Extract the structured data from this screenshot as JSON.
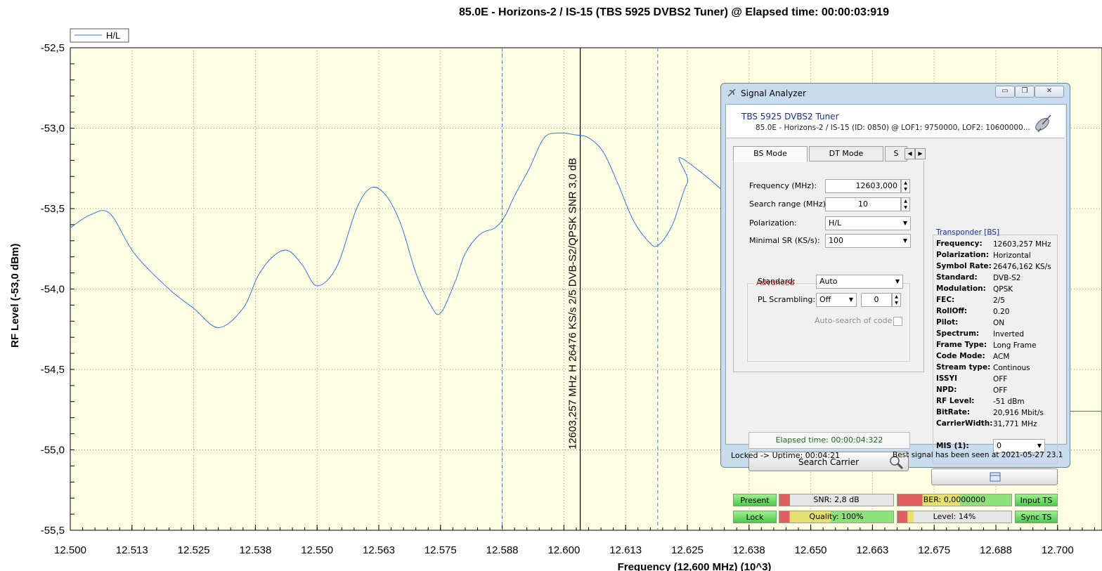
{
  "chart": {
    "title": "85.0E -  Horizons-2 / IS-15    (TBS 5925 DVBS2 Tuner) @ Elapsed time: 00:00:03:919",
    "xlabel": "Frequency (12,600 MHz) (10^3)",
    "ylabel": "RF Level (-53,0 dBm)",
    "legend": "H/L",
    "marker_label": "12603,257 MHz H 26476 KS/s 2/5 DVB-S2/QPSK SNR 3,0 dB",
    "colors": {
      "plot_bg": "#ffffe4",
      "line": "#3377dd",
      "marker": "#000000",
      "dashed": "#3a7bd5"
    }
  },
  "chart_data": {
    "type": "line",
    "title": "85.0E -  Horizons-2 / IS-15    (TBS 5925 DVBS2 Tuner) @ Elapsed time: 00:00:03:919",
    "xlabel": "Frequency (12,600 MHz) (10^3)",
    "ylabel": "RF Level (-53,0 dBm)",
    "xlim": [
      12.5,
      12.709
    ],
    "ylim": [
      -55.5,
      -52.5
    ],
    "x_ticks": [
      "12.500",
      "12.513",
      "12.525",
      "12.538",
      "12.550",
      "12.563",
      "12.575",
      "12.588",
      "12.600",
      "12.613",
      "12.625",
      "12.638",
      "12.650",
      "12.663",
      "12.675",
      "12.688",
      "12.700"
    ],
    "y_ticks": [
      "-52,5",
      "-53,0",
      "-53,5",
      "-54,0",
      "-54,5",
      "-55,0",
      "-55,5"
    ],
    "legend": "top-left",
    "grid": true,
    "series": [
      {
        "name": "H/L",
        "x": [
          12.5,
          12.504,
          12.508,
          12.513,
          12.52,
          12.525,
          12.53,
          12.535,
          12.538,
          12.541,
          12.544,
          12.547,
          12.55,
          12.554,
          12.558,
          12.561,
          12.564,
          12.567,
          12.57,
          12.573,
          12.575,
          12.578,
          12.58,
          12.583,
          12.586,
          12.588,
          12.59,
          12.593,
          12.596,
          12.599,
          12.602,
          12.605,
          12.608,
          12.611,
          12.614,
          12.617,
          12.619,
          12.622,
          12.625,
          12.628,
          12.68,
          12.685,
          12.689,
          12.693,
          12.698,
          12.702,
          12.706,
          12.709
        ],
        "y": [
          -53.62,
          -53.54,
          -53.53,
          -53.78,
          -54.0,
          -54.12,
          -54.24,
          -54.12,
          -53.92,
          -53.8,
          -53.76,
          -53.85,
          -53.98,
          -53.86,
          -53.5,
          -53.37,
          -53.42,
          -53.6,
          -53.9,
          -54.1,
          -54.15,
          -53.95,
          -53.78,
          -53.66,
          -53.62,
          -53.55,
          -53.42,
          -53.25,
          -53.06,
          -53.03,
          -53.04,
          -53.06,
          -53.15,
          -53.35,
          -53.57,
          -53.7,
          -53.73,
          -53.6,
          -53.34,
          -53.28,
          -54.7,
          -54.72,
          -54.74,
          -54.75,
          -54.76,
          -54.76,
          -54.76,
          -54.76
        ]
      }
    ],
    "markers": [
      {
        "x": 12.6033,
        "style": "solid"
      },
      {
        "x": 12.5875,
        "style": "dashed"
      },
      {
        "x": 12.619,
        "style": "dashed"
      }
    ]
  },
  "window": {
    "title": "Signal Analyzer",
    "buttons": {
      "minimize": "▭",
      "restore": "❐",
      "close": "✕"
    },
    "header": {
      "tuner": "TBS 5925 DVBS2 Tuner",
      "info": "85.0E -  Horizons-2 / IS-15    (ID: 0850) @ LOF1: 9750000, LOF2: 10600000..."
    },
    "tabs": [
      "BS Mode",
      "DT Mode",
      "S"
    ],
    "form": {
      "frequency_label": "Frequency (MHz):",
      "frequency_value": "12603,000",
      "search_range_label": "Search range (MHz):",
      "search_range_value": "10",
      "polarization_label": "Polarization:",
      "polarization_value": "H/L",
      "minimal_sr_label": "Minimal SR (KS/s):",
      "minimal_sr_value": "100",
      "advanced_title": "Advanced",
      "standard_label": "Standard:",
      "standard_value": "Auto",
      "pl_label": "PL Scrambling:",
      "pl_mode": "Off",
      "pl_value": "0",
      "autosearch_label": "Auto-search of code"
    },
    "elapsed": "Elapsed time: 00:00:04:322",
    "search_button": "Search Carrier",
    "transponder": {
      "title": "Transponder [BS]",
      "rows": [
        {
          "k": "Frequency:",
          "v": "12603,257 MHz"
        },
        {
          "k": "Polarization:",
          "v": "Horizontal"
        },
        {
          "k": "Symbol Rate:",
          "v": "26476,162 KS/s"
        },
        {
          "k": "Standard:",
          "v": "DVB-S2"
        },
        {
          "k": "Modulation:",
          "v": "QPSK"
        },
        {
          "k": "FEC:",
          "v": "2/5"
        },
        {
          "k": "RollOff:",
          "v": "0.20"
        },
        {
          "k": "Pilot:",
          "v": "ON"
        },
        {
          "k": "Spectrum:",
          "v": "Inverted"
        },
        {
          "k": "Frame Type:",
          "v": "Long Frame"
        },
        {
          "k": "Code Mode:",
          "v": "ACM"
        },
        {
          "k": "Stream type:",
          "v": "Continous"
        },
        {
          "k": "ISSYI",
          "v": "OFF"
        },
        {
          "k": "NPD:",
          "v": "OFF"
        },
        {
          "k": "RF Level:",
          "v": "-51 dBm"
        },
        {
          "k": "BitRate:",
          "v": "20,916 Mbit/s"
        },
        {
          "k": "CarrierWidth:",
          "v": "31,771 MHz"
        }
      ],
      "mis_label": "MIS (1):",
      "mis_value": "0"
    },
    "status": {
      "present": "Present",
      "lock": "Lock",
      "snr": "SNR: 2,8 dB",
      "ber": "BER: 0,0000000",
      "quality": "Quality: 100%",
      "quality_pct": 100,
      "level": "Level: 14%",
      "level_pct": 14,
      "input_ts": "Input TS",
      "sync_ts": "Sync TS"
    },
    "statusbar": {
      "left": "Locked -> Uptime: 00:04:21",
      "right": "Best signal has been seen at 2021-05-27 23.1"
    }
  }
}
